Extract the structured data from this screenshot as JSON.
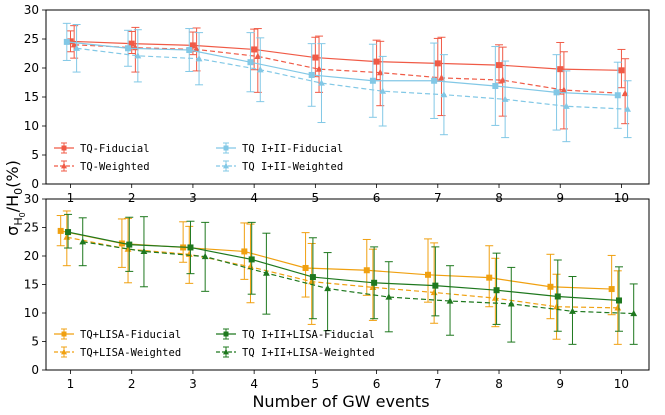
{
  "chart_data": {
    "type": "line",
    "xlabel": "Number of GW events",
    "ylabel_base": "σ",
    "ylabel_sub": "H",
    "ylabel_subsub": "0",
    "ylabel_rest": "/H",
    "ylabel_rest_sub": "0",
    "ylabel_tail": "(%)",
    "x": [
      1,
      2,
      3,
      4,
      5,
      6,
      7,
      8,
      9,
      10
    ],
    "x_ticks": [
      "1",
      "2",
      "3",
      "4",
      "5",
      "6",
      "7",
      "8",
      "9",
      "10"
    ],
    "xlim": [
      0.6,
      10.45
    ],
    "panels": [
      {
        "ylim": [
          0,
          30
        ],
        "y_ticks": [
          "0",
          "5",
          "10",
          "15",
          "20",
          "25",
          "30"
        ],
        "legend_location": "lower-left",
        "series": [
          {
            "name": "TQ-Fiducial",
            "color": "#f05a46",
            "linestyle": "solid",
            "marker": "square",
            "x_offset": 0.0,
            "values": [
              24.6,
              24.2,
              23.9,
              23.2,
              21.8,
              21.1,
              20.8,
              20.5,
              19.8,
              19.6
            ],
            "lower": [
              22.8,
              22.5,
              22.3,
              19.7,
              18.5,
              18.0,
              17.7,
              17.4,
              15.5,
              16.6
            ],
            "upper": [
              26.4,
              26.3,
              26.2,
              26.7,
              25.3,
              24.8,
              25.1,
              24.0,
              24.4,
              23.2
            ]
          },
          {
            "name": "TQ-Weighted",
            "color": "#f05a46",
            "linestyle": "dashed",
            "marker": "triangle",
            "x_offset": 0.06,
            "values": [
              24.0,
              23.5,
              23.2,
              22.0,
              19.8,
              19.2,
              18.3,
              17.9,
              16.2,
              15.6
            ],
            "lower": [
              21.7,
              19.3,
              19.5,
              15.8,
              15.8,
              13.5,
              11.8,
              11.7,
              9.5,
              10.4
            ],
            "upper": [
              27.3,
              27.0,
              26.9,
              26.8,
              25.5,
              24.6,
              25.3,
              23.6,
              22.8,
              21.6
            ]
          },
          {
            "name": "TQ I+II-Fiducial",
            "color": "#82c8e6",
            "linestyle": "solid",
            "marker": "square",
            "x_offset": -0.06,
            "values": [
              24.5,
              23.4,
              23.1,
              21.0,
              18.8,
              17.8,
              17.8,
              16.9,
              15.8,
              15.3
            ],
            "lower": [
              21.3,
              20.3,
              19.4,
              15.9,
              13.4,
              11.5,
              11.3,
              10.1,
              9.3,
              9.6
            ],
            "upper": [
              27.7,
              26.5,
              26.8,
              26.1,
              24.2,
              24.1,
              24.3,
              23.7,
              22.3,
              21.0
            ]
          },
          {
            "name": "TQ I+II-Weighted",
            "color": "#82c8e6",
            "linestyle": "dashed",
            "marker": "triangle",
            "x_offset": 0.1,
            "values": [
              23.4,
              22.1,
              21.6,
              19.7,
              17.4,
              16.0,
              15.4,
              14.6,
              13.4,
              12.9
            ],
            "lower": [
              19.3,
              17.6,
              17.1,
              14.2,
              10.6,
              10.0,
              8.5,
              8.0,
              7.3,
              8.0
            ],
            "upper": [
              27.5,
              26.6,
              26.1,
              25.2,
              24.2,
              22.0,
              22.3,
              21.2,
              19.5,
              17.8
            ]
          }
        ]
      },
      {
        "ylim": [
          0,
          30
        ],
        "y_ticks": [
          "0",
          "5",
          "10",
          "15",
          "20",
          "25",
          "30"
        ],
        "legend_location": "lower-left",
        "series": [
          {
            "name": "TQ+LISA-Fiducial",
            "color": "#f0a010",
            "linestyle": "solid",
            "marker": "square",
            "x_offset": -0.16,
            "values": [
              24.4,
              22.2,
              21.5,
              20.8,
              17.9,
              17.5,
              16.7,
              16.2,
              14.6,
              14.2
            ],
            "lower": [
              21.8,
              18.0,
              18.9,
              15.9,
              12.8,
              13.1,
              11.9,
              11.1,
              9.0,
              9.7
            ],
            "upper": [
              27.1,
              26.5,
              26.0,
              25.8,
              24.1,
              22.9,
              23.0,
              21.8,
              20.3,
              20.1
            ]
          },
          {
            "name": "TQ+LISA-Weighted",
            "color": "#f0a010",
            "linestyle": "dashed",
            "marker": "triangle",
            "x_offset": -0.06,
            "values": [
              23.3,
              21.2,
              20.3,
              18.1,
              15.5,
              14.5,
              13.6,
              12.6,
              11.1,
              10.9
            ],
            "lower": [
              18.3,
              15.3,
              15.2,
              11.8,
              8.0,
              8.7,
              8.2,
              7.6,
              5.4,
              4.5
            ],
            "upper": [
              27.9,
              26.6,
              25.2,
              25.6,
              22.2,
              21.2,
              22.3,
              19.6,
              16.8,
              17.4
            ]
          },
          {
            "name": "TQ I+II+LISA-Fiducial",
            "color": "#1e781e",
            "linestyle": "solid",
            "marker": "square",
            "x_offset": -0.04,
            "values": [
              24.2,
              22.0,
              21.5,
              19.4,
              16.3,
              15.3,
              14.8,
              14.0,
              12.9,
              12.2
            ],
            "lower": [
              21.4,
              17.3,
              16.9,
              13.3,
              9.0,
              9.0,
              9.5,
              8.0,
              6.8,
              6.8
            ],
            "upper": [
              27.3,
              26.8,
              26.1,
              25.9,
              23.2,
              21.6,
              21.6,
              20.5,
              19.3,
              18.1
            ]
          },
          {
            "name": "TQ I+II+LISA-Weighted",
            "color": "#1e781e",
            "linestyle": "dashed",
            "marker": "triangle",
            "x_offset": 0.2,
            "values": [
              22.5,
              20.8,
              19.9,
              17.0,
              14.3,
              12.8,
              12.1,
              11.6,
              10.3,
              9.9
            ],
            "lower": [
              18.3,
              14.6,
              13.8,
              9.8,
              6.9,
              6.7,
              6.1,
              4.9,
              4.5,
              4.5
            ],
            "upper": [
              26.7,
              26.9,
              25.9,
              24.0,
              20.6,
              19.0,
              18.3,
              18.0,
              16.4,
              15.1
            ]
          }
        ]
      }
    ]
  }
}
